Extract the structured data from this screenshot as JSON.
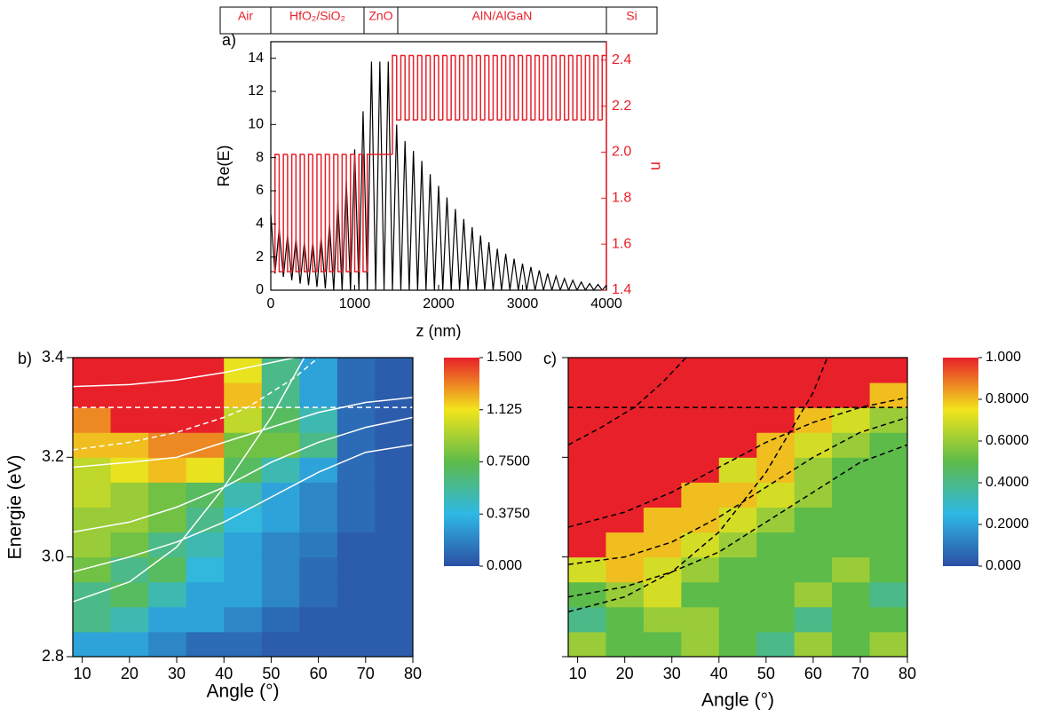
{
  "chart_data": [
    {
      "type": "line",
      "panel_label": "a)",
      "layers": [
        "Air",
        "HfO₂/SiO₂",
        "ZnO",
        "AlN/AlGaN",
        "Si"
      ],
      "xlabel": "z (nm)",
      "ylabel": "Re(E)",
      "y2label": "n",
      "xlim": [
        0,
        4000
      ],
      "xticks": [
        0,
        1000,
        2000,
        3000,
        4000
      ],
      "ylim": [
        0,
        15
      ],
      "yticks": [
        0,
        2,
        4,
        6,
        8,
        10,
        12,
        14
      ],
      "y2lim": [
        1.4,
        2.48
      ],
      "y2ticks": [
        1.4,
        1.6,
        1.8,
        {
          "value": 2.0,
          "label": "2.0"
        },
        2.2,
        2.4
      ],
      "y2color": "#e8202a",
      "series": [
        {
          "color": "#000000",
          "x": [
            0,
            50,
            100,
            150,
            200,
            250,
            300,
            350,
            400,
            450,
            500,
            550,
            600,
            650,
            700,
            750,
            800,
            850,
            900,
            950,
            1000,
            1050,
            1100,
            1150,
            1200,
            1250,
            1300,
            1350,
            1400,
            1450,
            1500,
            1550,
            1600,
            1650,
            1700,
            1750,
            1800,
            1850,
            1900,
            1950,
            2000,
            2050,
            2100,
            2150,
            2200,
            2250,
            2300,
            2350,
            2400,
            2450,
            2500,
            2550,
            2600,
            2650,
            2700,
            2750,
            2800,
            2850,
            2900,
            2950,
            3000,
            3050,
            3100,
            3150,
            3200,
            3250,
            3300,
            3350,
            3400,
            3450,
            3500,
            3550,
            3600,
            3650,
            3700,
            3750,
            3800,
            3850,
            3900,
            3950,
            4000
          ],
          "values": [
            4.6,
            1.0,
            3.7,
            0.8,
            3.3,
            0.6,
            3.1,
            0.4,
            2.9,
            0.3,
            2.9,
            0.2,
            3.2,
            0.1,
            4.0,
            0,
            5.3,
            0,
            6.6,
            0,
            8.5,
            0,
            10.8,
            0,
            13.8,
            0,
            13.8,
            0,
            13.8,
            0,
            10.0,
            0,
            9.0,
            0,
            8.4,
            0,
            7.8,
            0,
            7.0,
            0,
            6.3,
            0,
            5.6,
            0,
            4.9,
            0,
            4.3,
            0,
            3.8,
            0,
            3.3,
            0,
            2.9,
            0,
            2.5,
            0,
            2.2,
            0,
            1.9,
            0,
            1.6,
            0,
            1.4,
            0,
            1.2,
            0,
            1.0,
            0,
            0.85,
            0,
            0.7,
            0,
            0.6,
            0,
            0.5,
            0,
            0.4,
            0,
            0.35,
            0,
            0.3
          ]
        },
        {
          "color": "#e8202a",
          "axis": "y2",
          "step": true,
          "x": [
            0,
            50,
            100,
            150,
            200,
            250,
            300,
            350,
            400,
            450,
            500,
            550,
            600,
            650,
            700,
            750,
            800,
            850,
            900,
            950,
            1000,
            1050,
            1100,
            1150,
            1450,
            1500,
            1550,
            1600,
            1650,
            1700,
            1750,
            1800,
            1850,
            1900,
            1950,
            2000,
            2050,
            2100,
            2150,
            2200,
            2250,
            2300,
            2350,
            2400,
            2450,
            2500,
            2550,
            2600,
            2650,
            2700,
            2750,
            2800,
            2850,
            2900,
            2950,
            3000,
            3050,
            3100,
            3150,
            3200,
            3250,
            3300,
            3350,
            3400,
            3450,
            3500,
            3550,
            3600,
            3650,
            3700,
            3750,
            3800,
            3850,
            3900,
            3950,
            4000
          ],
          "values": [
            1.48,
            1.99,
            1.48,
            1.99,
            1.48,
            1.99,
            1.48,
            1.99,
            1.48,
            1.99,
            1.48,
            1.99,
            1.48,
            1.99,
            1.48,
            1.99,
            1.48,
            1.99,
            1.48,
            1.99,
            1.48,
            1.99,
            1.48,
            1.99,
            2.42,
            2.14,
            2.42,
            2.14,
            2.42,
            2.14,
            2.42,
            2.14,
            2.42,
            2.14,
            2.42,
            2.14,
            2.42,
            2.14,
            2.42,
            2.14,
            2.42,
            2.14,
            2.42,
            2.14,
            2.42,
            2.14,
            2.42,
            2.14,
            2.42,
            2.14,
            2.42,
            2.14,
            2.42,
            2.14,
            2.42,
            2.14,
            2.42,
            2.14,
            2.42,
            2.14,
            2.42,
            2.14,
            2.42,
            2.14,
            2.42,
            2.14,
            2.42,
            2.14,
            2.42,
            2.14,
            2.42,
            2.14,
            2.42,
            2.14,
            2.42,
            2.42
          ]
        }
      ]
    },
    {
      "type": "heatmap",
      "panel_label": "b)",
      "xlabel": "Angle (°)",
      "ylabel": "Energie (eV)",
      "xlim": [
        8,
        80
      ],
      "xticks": [
        10,
        20,
        30,
        40,
        50,
        60,
        70,
        80
      ],
      "ylim": [
        2.8,
        3.4
      ],
      "yticks": [
        2.8,
        {
          "value": 3.0,
          "label": "3.0"
        },
        3.2,
        3.4
      ],
      "ytick_labels": true,
      "xbins": [
        8,
        16,
        24,
        32,
        40,
        48,
        56,
        64,
        72,
        80
      ],
      "ybins": [
        2.8,
        2.85,
        2.9,
        2.95,
        3.0,
        3.05,
        3.1,
        3.15,
        3.2,
        3.25,
        3.3,
        3.35,
        3.4
      ],
      "z": [
        [
          0.3,
          0.3,
          0.2,
          0.1,
          0.1,
          0.05,
          0.05,
          0.05,
          0.05
        ],
        [
          0.6,
          0.5,
          0.3,
          0.3,
          0.2,
          0.1,
          0.05,
          0.05,
          0.05
        ],
        [
          0.6,
          0.7,
          0.5,
          0.3,
          0.3,
          0.2,
          0.1,
          0.05,
          0.05
        ],
        [
          0.8,
          0.6,
          0.7,
          0.4,
          0.3,
          0.2,
          0.1,
          0.05,
          0.05
        ],
        [
          0.9,
          0.8,
          0.6,
          0.5,
          0.3,
          0.2,
          0.15,
          0.05,
          0.05
        ],
        [
          0.9,
          0.9,
          0.8,
          0.6,
          0.4,
          0.3,
          0.2,
          0.1,
          0.05
        ],
        [
          1.0,
          0.9,
          0.8,
          0.7,
          0.5,
          0.3,
          0.2,
          0.1,
          0.05
        ],
        [
          1.0,
          1.1,
          1.2,
          1.1,
          0.7,
          0.5,
          0.3,
          0.1,
          0.05
        ],
        [
          1.2,
          1.2,
          1.3,
          1.3,
          0.8,
          0.8,
          0.6,
          0.1,
          0.05
        ],
        [
          1.3,
          1.5,
          1.5,
          1.5,
          1.0,
          0.7,
          0.5,
          0.1,
          0.05
        ],
        [
          1.5,
          1.5,
          1.5,
          1.5,
          1.2,
          0.6,
          0.3,
          0.1,
          0.05
        ],
        [
          1.5,
          1.5,
          1.5,
          1.5,
          1.1,
          0.6,
          0.3,
          0.1,
          0.05
        ]
      ],
      "zlim": [
        0,
        1.5
      ],
      "zticks": [
        {
          "value": 0,
          "label": "0.000"
        },
        {
          "value": 0.375,
          "label": "0.3750"
        },
        {
          "value": 0.75,
          "label": "0.7500"
        },
        1.125,
        {
          "value": 1.5,
          "label": "1.500"
        }
      ],
      "colorscale": [
        "#2b4fa3",
        "#2fb8e6",
        "#5dbb4a",
        "#f2e51c",
        "#e8202a"
      ],
      "lines": [
        {
          "color": "#ffffff",
          "dashed": false,
          "x": [
            8,
            20,
            30,
            40,
            50,
            55
          ],
          "values": [
            3.342,
            3.346,
            3.355,
            3.37,
            3.39,
            3.4
          ]
        },
        {
          "color": "#ffffff",
          "dashed": true,
          "x": [
            8,
            80
          ],
          "values": [
            3.3,
            3.3
          ]
        },
        {
          "color": "#ffffff",
          "dashed": false,
          "x": [
            8,
            20,
            30,
            40,
            50,
            60,
            70,
            80
          ],
          "values": [
            3.18,
            3.19,
            3.2,
            3.23,
            3.26,
            3.29,
            3.31,
            3.32
          ]
        },
        {
          "color": "#ffffff",
          "dashed": true,
          "x": [
            8,
            20,
            30,
            40,
            45,
            50,
            55,
            60
          ],
          "values": [
            3.215,
            3.23,
            3.25,
            3.28,
            3.3,
            3.33,
            3.36,
            3.4
          ]
        },
        {
          "color": "#ffffff",
          "dashed": false,
          "x": [
            8,
            20,
            30,
            40,
            50,
            60,
            70,
            80
          ],
          "values": [
            3.05,
            3.07,
            3.1,
            3.14,
            3.19,
            3.23,
            3.26,
            3.28
          ]
        },
        {
          "color": "#ffffff",
          "dashed": false,
          "x": [
            8,
            20,
            30,
            40,
            50,
            60,
            70,
            80
          ],
          "values": [
            2.97,
            3.0,
            3.03,
            3.07,
            3.12,
            3.17,
            3.21,
            3.225
          ]
        },
        {
          "color": "#ffffff",
          "dashed": false,
          "x": [
            8,
            20,
            30,
            40,
            50,
            57
          ],
          "values": [
            2.91,
            2.95,
            3.02,
            3.14,
            3.28,
            3.4
          ]
        }
      ]
    },
    {
      "type": "heatmap",
      "panel_label": "c)",
      "xlabel": "Angle (°)",
      "xlim": [
        8,
        80
      ],
      "xticks": [
        10,
        20,
        30,
        40,
        50,
        60,
        70,
        80
      ],
      "ylim": [
        2.8,
        3.4
      ],
      "yticks": [
        2.8,
        3.0,
        3.2,
        3.4
      ],
      "ytick_labels": false,
      "xbins": [
        8,
        16,
        24,
        32,
        40,
        48,
        56,
        64,
        72,
        80
      ],
      "ybins": [
        2.8,
        2.85,
        2.9,
        2.95,
        3.0,
        3.05,
        3.1,
        3.15,
        3.2,
        3.25,
        3.3,
        3.35,
        3.4
      ],
      "z": [
        [
          0.6,
          0.5,
          0.5,
          0.6,
          0.5,
          0.4,
          0.6,
          0.5,
          0.6
        ],
        [
          0.4,
          0.5,
          0.6,
          0.6,
          0.5,
          0.5,
          0.4,
          0.5,
          0.5
        ],
        [
          0.5,
          0.6,
          0.7,
          0.5,
          0.5,
          0.5,
          0.6,
          0.5,
          0.4
        ],
        [
          0.7,
          0.8,
          0.7,
          0.6,
          0.5,
          0.5,
          0.5,
          0.6,
          0.5
        ],
        [
          1.0,
          0.8,
          0.8,
          0.7,
          0.6,
          0.5,
          0.5,
          0.5,
          0.5
        ],
        [
          1.0,
          1.0,
          0.8,
          0.8,
          0.7,
          0.6,
          0.5,
          0.5,
          0.5
        ],
        [
          1.0,
          1.0,
          1.0,
          0.8,
          0.8,
          0.7,
          0.6,
          0.5,
          0.5
        ],
        [
          1.0,
          1.0,
          1.0,
          1.0,
          0.7,
          0.8,
          0.6,
          0.5,
          0.5
        ],
        [
          1.0,
          1.0,
          1.0,
          1.0,
          1.0,
          0.8,
          0.7,
          0.6,
          0.5
        ],
        [
          1.0,
          1.0,
          1.0,
          1.0,
          1.0,
          1.0,
          0.8,
          0.7,
          0.6
        ],
        [
          1.0,
          1.0,
          1.0,
          1.0,
          1.0,
          1.0,
          1.0,
          1.0,
          0.8
        ],
        [
          1.0,
          1.0,
          1.0,
          1.0,
          1.0,
          1.0,
          1.0,
          1.0,
          1.0
        ]
      ],
      "zlim": [
        0,
        1
      ],
      "zticks": [
        {
          "value": 0,
          "label": "0.000"
        },
        {
          "value": 0.2,
          "label": "0.2000"
        },
        {
          "value": 0.4,
          "label": "0.4000"
        },
        {
          "value": 0.6,
          "label": "0.6000"
        },
        {
          "value": 0.8,
          "label": "0.8000"
        },
        {
          "value": 1,
          "label": "1.000"
        }
      ],
      "colorscale": [
        "#2b4fa3",
        "#2fb8e6",
        "#5dbb4a",
        "#f2e51c",
        "#e8202a"
      ],
      "lines": [
        {
          "color": "#000000",
          "dashed": true,
          "x": [
            8,
            80
          ],
          "values": [
            3.3,
            3.3
          ]
        },
        {
          "color": "#000000",
          "dashed": true,
          "x": [
            8,
            15,
            22,
            28,
            33
          ],
          "values": [
            3.225,
            3.26,
            3.3,
            3.35,
            3.4
          ]
        },
        {
          "color": "#000000",
          "dashed": true,
          "x": [
            8,
            20,
            30,
            40,
            50,
            60,
            63
          ],
          "values": [
            2.89,
            2.92,
            2.97,
            3.05,
            3.17,
            3.33,
            3.4
          ]
        },
        {
          "color": "#000000",
          "dashed": true,
          "x": [
            8,
            20,
            30,
            40,
            50,
            60,
            70,
            80
          ],
          "values": [
            3.06,
            3.09,
            3.13,
            3.18,
            3.23,
            3.27,
            3.3,
            3.32
          ]
        },
        {
          "color": "#000000",
          "dashed": true,
          "x": [
            8,
            20,
            30,
            40,
            50,
            60,
            70,
            80
          ],
          "values": [
            2.985,
            3.0,
            3.03,
            3.08,
            3.14,
            3.2,
            3.25,
            3.28
          ]
        },
        {
          "color": "#000000",
          "dashed": true,
          "x": [
            8,
            20,
            30,
            40,
            50,
            60,
            70,
            80
          ],
          "values": [
            2.92,
            2.94,
            2.97,
            3.01,
            3.07,
            3.13,
            3.19,
            3.225
          ]
        }
      ]
    }
  ]
}
